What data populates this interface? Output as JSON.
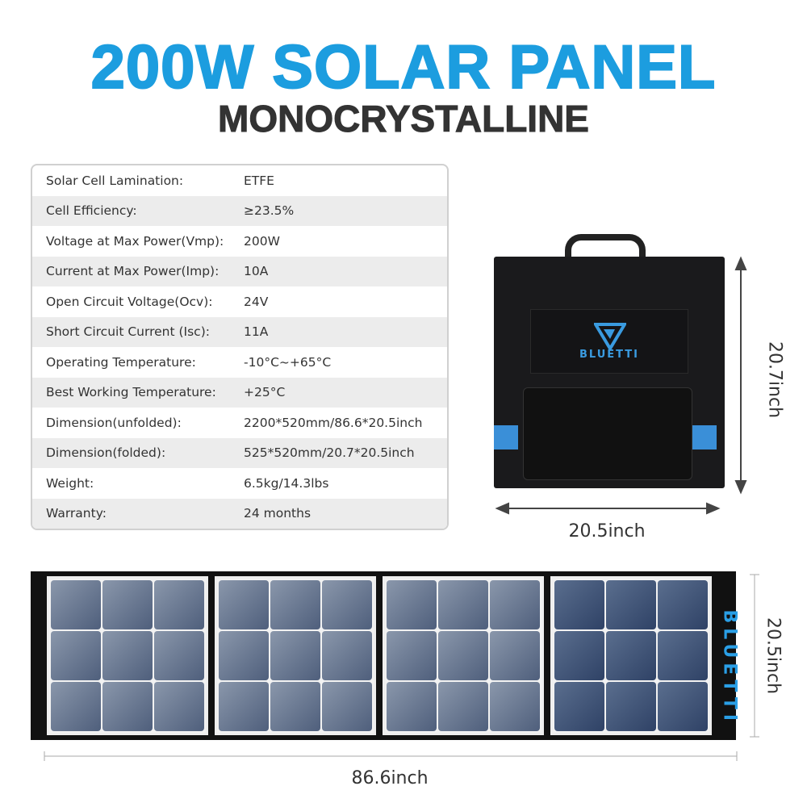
{
  "header": {
    "title": "200W SOLAR PANEL",
    "subtitle": "MONOCRYSTALLINE"
  },
  "specs": [
    {
      "label": "Solar Cell Lamination:",
      "value": "ETFE"
    },
    {
      "label": "Cell  Efficiency:",
      "value": "≥23.5%"
    },
    {
      "label": "Voltage at Max Power(Vmp):",
      "value": "200W"
    },
    {
      "label": "Current at Max Power(Imp):",
      "value": "10A"
    },
    {
      "label": "Open Circuit Voltage(Ocv):",
      "value": "24V"
    },
    {
      "label": "Short Circuit Current (Isc):",
      "value": "11A"
    },
    {
      "label": "Operating Temperature:",
      "value": "-10°C~+65°C"
    },
    {
      "label": "Best Working Temperature:",
      "value": "+25°C"
    },
    {
      "label": "Dimension(unfolded):",
      "value": "2200*520mm/86.6*20.5inch"
    },
    {
      "label": "Dimension(folded):",
      "value": "525*520mm/20.7*20.5inch"
    },
    {
      "label": "Weight:",
      "value": "6.5kg/14.3lbs"
    },
    {
      "label": "Warranty:",
      "value": "24 months"
    }
  ],
  "folded": {
    "height_label": "20.7inch",
    "width_label": "20.5inch",
    "brand": "BLUETTI"
  },
  "unfolded": {
    "height_label": "20.5inch",
    "width_label": "86.6inch",
    "brand": "BLUETTI"
  },
  "colors": {
    "accent": "#1c9ddf",
    "text": "#333333"
  }
}
